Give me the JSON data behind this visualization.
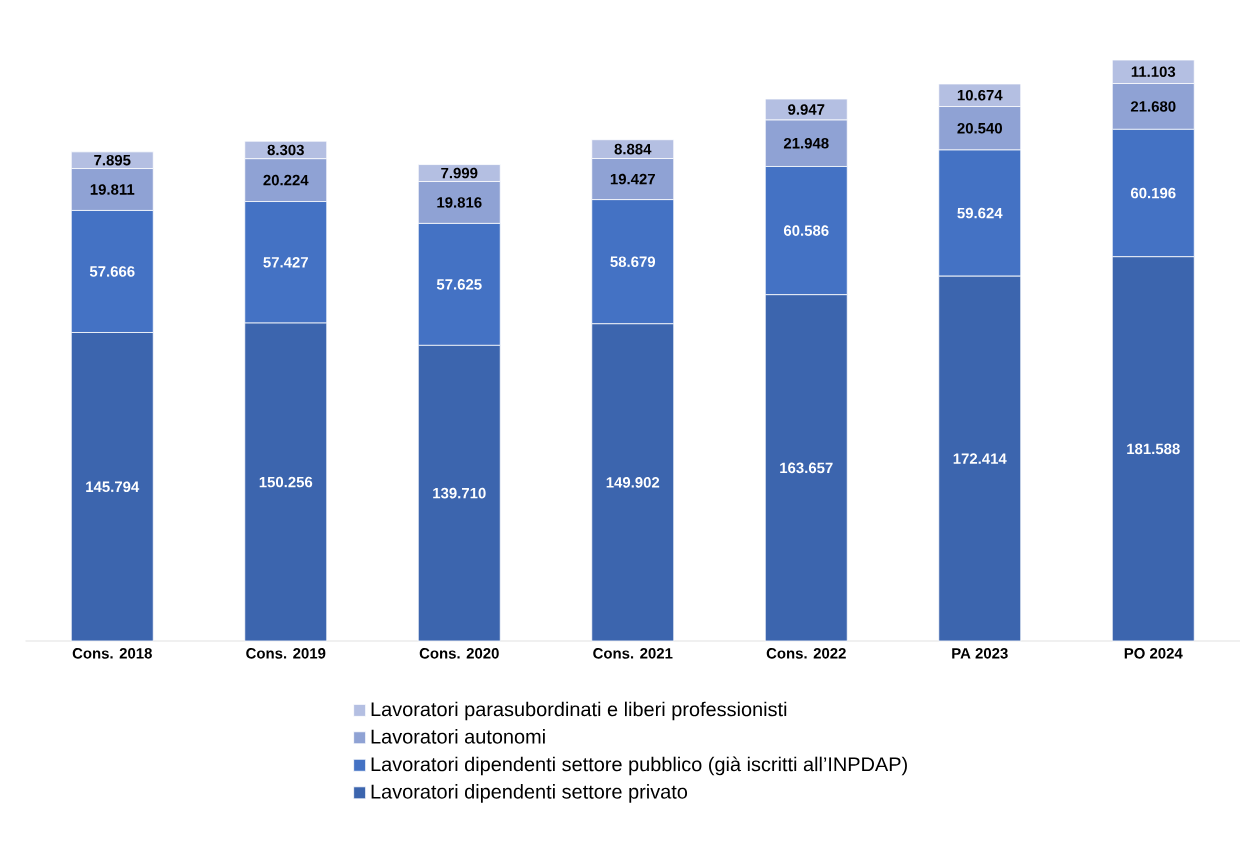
{
  "chart_data": {
    "type": "bar",
    "stacked": true,
    "legend": "bottom",
    "grid": false,
    "categories": [
      "Cons. 2018",
      "Cons. 2019",
      "Cons. 2020",
      "Cons. 2021",
      "Cons. 2022",
      "PA 2023",
      "PO 2024"
    ],
    "series": [
      {
        "name": "Lavoratori dipendenti settore privato",
        "color": "#3c65ae",
        "values": [
          145794,
          150256,
          139710,
          149902,
          163657,
          172414,
          181588
        ],
        "value_labels": [
          "145.794",
          "150.256",
          "139.710",
          "149.902",
          "163.657",
          "172.414",
          "181.588"
        ]
      },
      {
        "name": "Lavoratori dipendenti settore pubblico (già iscritti all’INPDAP)",
        "color": "#4472c4",
        "values": [
          57666,
          57427,
          57625,
          58679,
          60586,
          59624,
          60196
        ],
        "value_labels": [
          "57.666",
          "57.427",
          "57.625",
          "58.679",
          "60.586",
          "59.624",
          "60.196"
        ]
      },
      {
        "name": "Lavoratori autonomi",
        "color": "#8fa2d4",
        "values": [
          19811,
          20224,
          19816,
          19427,
          21948,
          20540,
          21680
        ],
        "value_labels": [
          "19.811",
          "20.224",
          "19.816",
          "19.427",
          "21.948",
          "20.540",
          "21.680"
        ]
      },
      {
        "name": "Lavoratori parasubordinati e liberi professionisti",
        "color": "#b4bfe2",
        "values": [
          7895,
          8303,
          7999,
          8884,
          9947,
          10674,
          11103
        ],
        "value_labels": [
          "7.895",
          "8.303",
          "7.999",
          "8.884",
          "9.947",
          "10.674",
          "11.103"
        ]
      }
    ]
  }
}
